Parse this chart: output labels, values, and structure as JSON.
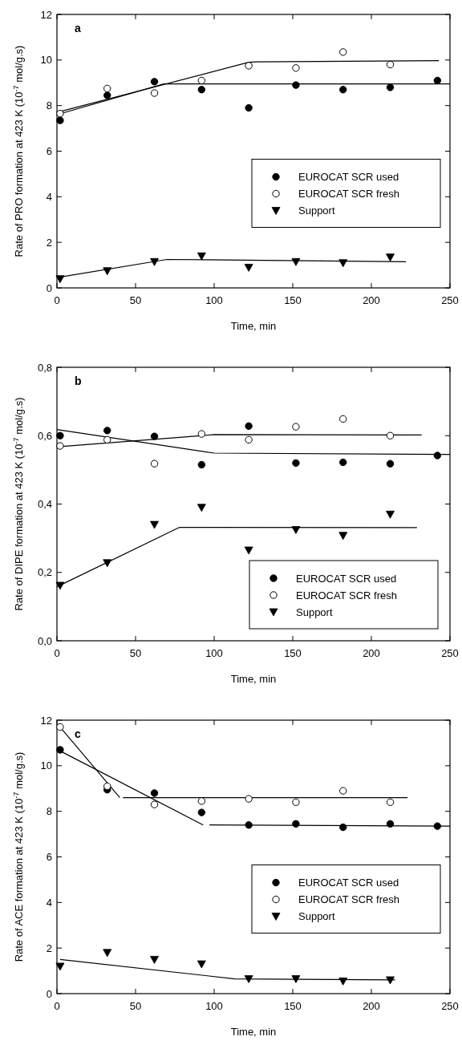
{
  "chart_data": [
    {
      "type": "scatter",
      "title": "a",
      "xlabel": "Time, min",
      "ylabel": "Rate of PRO formation at 423 K (10$^{-7}$ mol/g.s)",
      "xlim": [
        0,
        250
      ],
      "xticks": [
        0,
        50,
        100,
        150,
        200,
        250
      ],
      "ylim": [
        0,
        12
      ],
      "yticks": [
        0,
        2,
        4,
        6,
        8,
        10,
        12
      ],
      "legend": "right",
      "grid": false,
      "series": [
        {
          "name": "EUROCAT SCR used",
          "color": "#000000",
          "marker": "circle",
          "x": [
            2,
            32,
            62,
            92,
            122,
            152,
            182,
            212,
            242
          ],
          "values": [
            7.35,
            8.45,
            9.05,
            8.7,
            7.9,
            8.9,
            8.7,
            8.8,
            9.1
          ]
        },
        {
          "name": "EUROCAT SCR fresh",
          "color": "#ffffff",
          "marker": "circle",
          "x": [
            2,
            32,
            62,
            92,
            122,
            152,
            182,
            212
          ],
          "values": [
            7.65,
            8.75,
            8.55,
            9.1,
            9.75,
            9.65,
            10.35,
            9.8
          ]
        },
        {
          "name": "Support",
          "color": "#000000",
          "marker": "triangle",
          "x": [
            2,
            32,
            62,
            92,
            122,
            152,
            182,
            212
          ],
          "values": [
            0.4,
            0.75,
            1.15,
            1.4,
            0.9,
            1.15,
            1.1,
            1.35
          ]
        },
        {
          "type": "line",
          "color": "#000000",
          "x": [
            0,
            68,
            250
          ],
          "values": [
            7.6,
            8.95,
            8.95
          ]
        },
        {
          "type": "line",
          "color": "#000000",
          "x": [
            0,
            122,
            127,
            243
          ],
          "values": [
            7.7,
            9.9,
            9.92,
            9.97
          ]
        },
        {
          "type": "line",
          "color": "#000000",
          "x": [
            0,
            70,
            222
          ],
          "values": [
            0.45,
            1.25,
            1.15
          ]
        }
      ]
    },
    {
      "type": "scatter",
      "title": "b",
      "xlabel": "Time, min",
      "ylabel": "Rate of DIPE formation at 423 K (10$^{-7}$ mol/g.s)",
      "xlim": [
        0,
        250
      ],
      "xticks": [
        0,
        50,
        100,
        150,
        200,
        250
      ],
      "ylim": [
        0,
        0.8
      ],
      "yticks": [
        {
          "value": 0,
          "label": "0,0"
        },
        {
          "value": 0.2,
          "label": "0,2"
        },
        {
          "value": 0.4,
          "label": "0,4"
        },
        {
          "value": 0.6,
          "label": "0,6"
        },
        {
          "value": 0.8,
          "label": "0,8"
        }
      ],
      "legend": "bottom right",
      "grid": false,
      "series": [
        {
          "name": "EUROCAT SCR used",
          "color": "#000000",
          "marker": "circle",
          "x": [
            2,
            32,
            62,
            92,
            122,
            152,
            182,
            212,
            242
          ],
          "values": [
            0.6,
            0.615,
            0.598,
            0.515,
            0.628,
            0.52,
            0.522,
            0.518,
            0.542
          ]
        },
        {
          "name": "EUROCAT SCR fresh",
          "color": "#ffffff",
          "marker": "circle",
          "x": [
            2,
            32,
            62,
            92,
            122,
            152,
            182,
            212
          ],
          "values": [
            0.57,
            0.588,
            0.518,
            0.605,
            0.588,
            0.626,
            0.649,
            0.6
          ]
        },
        {
          "name": "Support",
          "color": "#000000",
          "marker": "triangle",
          "x": [
            2,
            32,
            62,
            92,
            122,
            152,
            182,
            212
          ],
          "values": [
            0.162,
            0.228,
            0.34,
            0.39,
            0.265,
            0.325,
            0.308,
            0.37
          ]
        },
        {
          "type": "line",
          "color": "#000000",
          "x": [
            0,
            100,
            250
          ],
          "values": [
            0.618,
            0.549,
            0.545
          ]
        },
        {
          "type": "line",
          "color": "#000000",
          "x": [
            2,
            100,
            232
          ],
          "values": [
            0.568,
            0.603,
            0.602
          ]
        },
        {
          "type": "line",
          "color": "#000000",
          "x": [
            0,
            78,
            229
          ],
          "values": [
            0.158,
            0.332,
            0.331
          ]
        }
      ]
    },
    {
      "type": "scatter",
      "title": "c",
      "xlabel": "Time, min",
      "ylabel": "Rate of ACE formation at 423 K (10$^{-7}$ mol/g.s)",
      "xlim": [
        0,
        250
      ],
      "xticks": [
        0,
        50,
        100,
        150,
        200,
        250
      ],
      "ylim": [
        0,
        12
      ],
      "yticks": [
        0,
        2,
        4,
        6,
        8,
        10,
        12
      ],
      "legend": "right",
      "grid": false,
      "series": [
        {
          "name": "EUROCAT SCR used",
          "color": "#000000",
          "marker": "circle",
          "x": [
            2,
            32,
            62,
            92,
            122,
            152,
            182,
            212,
            242
          ],
          "values": [
            10.7,
            8.95,
            8.8,
            7.95,
            7.4,
            7.45,
            7.3,
            7.45,
            7.35
          ]
        },
        {
          "name": "EUROCAT SCR fresh",
          "color": "#ffffff",
          "marker": "circle",
          "x": [
            2,
            32,
            62,
            92,
            122,
            152,
            182,
            212
          ],
          "values": [
            11.7,
            9.1,
            8.3,
            8.45,
            8.55,
            8.4,
            8.9,
            8.4
          ]
        },
        {
          "name": "Support",
          "color": "#000000",
          "marker": "triangle",
          "x": [
            2,
            32,
            62,
            92,
            122,
            152,
            182,
            212
          ],
          "values": [
            1.2,
            1.8,
            1.5,
            1.3,
            0.65,
            0.65,
            0.55,
            0.6
          ]
        },
        {
          "type": "line",
          "color": "#000000",
          "x": [
            2,
            93,
            95,
            97,
            250
          ],
          "values": [
            10.65,
            7.4,
            null,
            7.4,
            7.35
          ]
        },
        {
          "type": "line",
          "color": "#000000",
          "x": [
            2,
            40,
            41,
            42,
            223
          ],
          "values": [
            11.7,
            8.6,
            null,
            8.6,
            8.6
          ]
        },
        {
          "type": "line",
          "color": "#000000",
          "x": [
            2,
            113,
            215
          ],
          "values": [
            1.5,
            0.65,
            0.6
          ]
        }
      ]
    }
  ]
}
